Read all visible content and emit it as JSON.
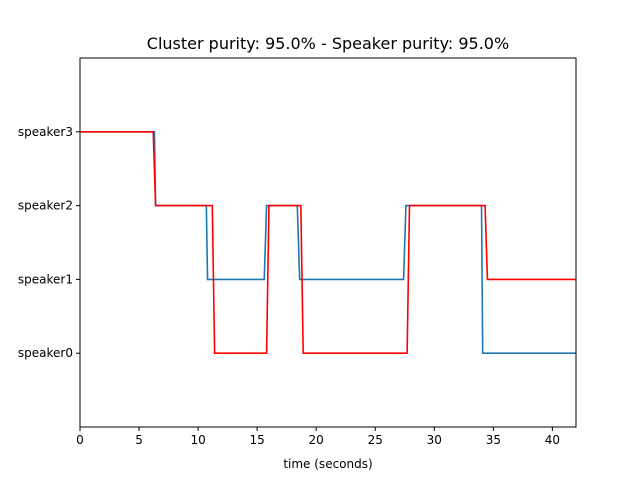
{
  "chart_data": {
    "type": "line",
    "title": "Cluster purity: 95.0% - Speaker purity: 95.0%",
    "xlabel": "time (seconds)",
    "ylabel": "",
    "xlim": [
      0,
      42
    ],
    "ylim": [
      -1,
      4
    ],
    "xticks": [
      0,
      5,
      10,
      15,
      20,
      25,
      30,
      35,
      40
    ],
    "yticks": [
      {
        "value": 0,
        "label": "speaker0"
      },
      {
        "value": 1,
        "label": "speaker1"
      },
      {
        "value": 2,
        "label": "speaker2"
      },
      {
        "value": 3,
        "label": "speaker3"
      }
    ],
    "grid": false,
    "legend": "none",
    "series": [
      {
        "color": "#1f77b4",
        "points": [
          [
            0,
            3
          ],
          [
            6.3,
            3
          ],
          [
            6.4,
            2
          ],
          [
            10.7,
            2
          ],
          [
            10.8,
            1
          ],
          [
            15.6,
            1
          ],
          [
            15.8,
            2
          ],
          [
            18.4,
            2
          ],
          [
            18.6,
            1
          ],
          [
            27.4,
            1
          ],
          [
            27.6,
            2
          ],
          [
            34.0,
            2
          ],
          [
            34.1,
            0
          ],
          [
            42,
            0
          ]
        ]
      },
      {
        "color": "#ff0000",
        "points": [
          [
            0,
            3
          ],
          [
            6.2,
            3
          ],
          [
            6.4,
            2
          ],
          [
            11.2,
            2
          ],
          [
            11.4,
            0
          ],
          [
            15.8,
            0
          ],
          [
            16.0,
            2
          ],
          [
            18.7,
            2
          ],
          [
            18.9,
            0
          ],
          [
            27.7,
            0
          ],
          [
            27.9,
            2
          ],
          [
            34.3,
            2
          ],
          [
            34.5,
            1
          ],
          [
            42,
            1
          ]
        ]
      }
    ]
  }
}
